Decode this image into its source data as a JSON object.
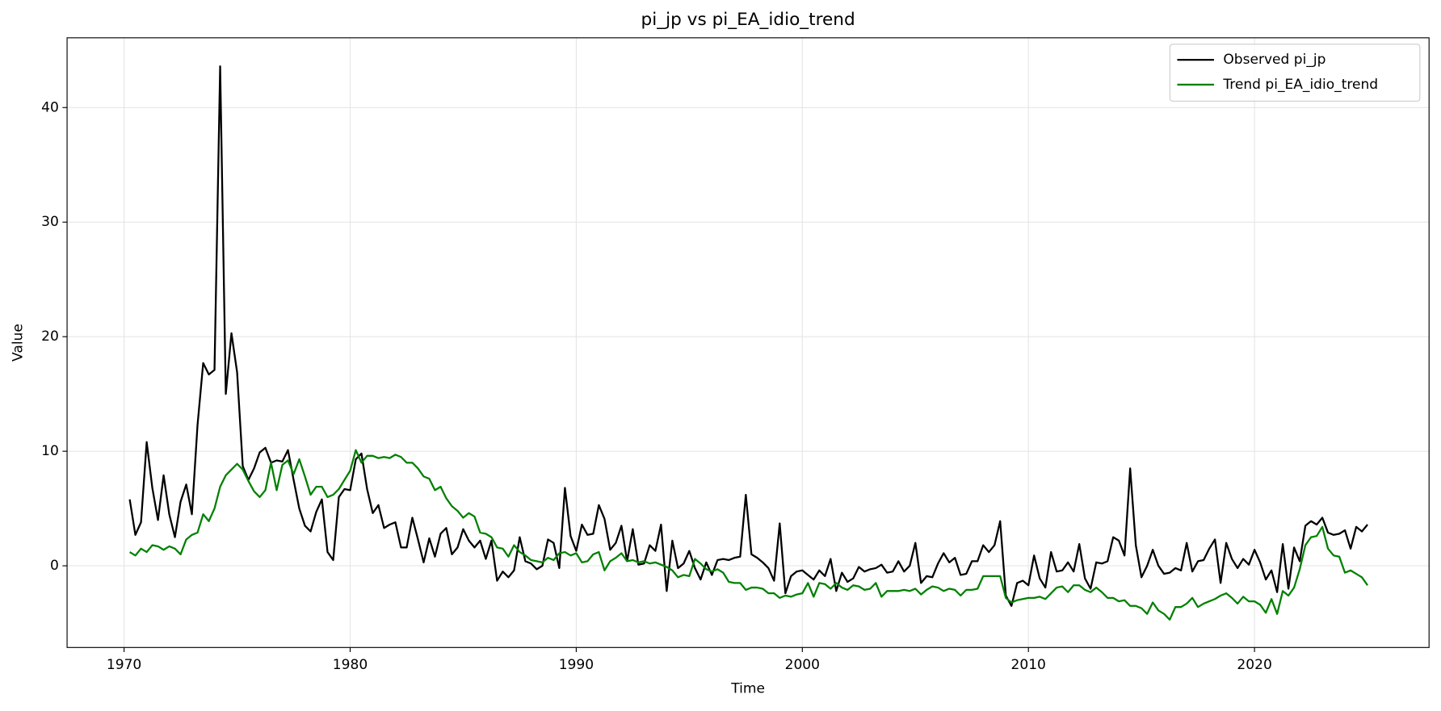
{
  "chart_data": {
    "type": "line",
    "title": "pi_jp vs pi_EA_idio_trend",
    "xlabel": "Time",
    "ylabel": "Value",
    "x": [
      1970.25,
      1970.5,
      1970.75,
      1971,
      1971.25,
      1971.5,
      1971.75,
      1972,
      1972.25,
      1972.5,
      1972.75,
      1973,
      1973.25,
      1973.5,
      1973.75,
      1974,
      1974.25,
      1974.5,
      1974.75,
      1975,
      1975.25,
      1975.5,
      1975.75,
      1976,
      1976.25,
      1976.5,
      1976.75,
      1977,
      1977.25,
      1977.5,
      1977.75,
      1978,
      1978.25,
      1978.5,
      1978.75,
      1979,
      1979.25,
      1979.5,
      1979.75,
      1980,
      1980.25,
      1980.5,
      1980.75,
      1981,
      1981.25,
      1981.5,
      1981.75,
      1982,
      1982.25,
      1982.5,
      1982.75,
      1983,
      1983.25,
      1983.5,
      1983.75,
      1984,
      1984.25,
      1984.5,
      1984.75,
      1985,
      1985.25,
      1985.5,
      1985.75,
      1986,
      1986.25,
      1986.5,
      1986.75,
      1987,
      1987.25,
      1987.5,
      1987.75,
      1988,
      1988.25,
      1988.5,
      1988.75,
      1989,
      1989.25,
      1989.5,
      1989.75,
      1990,
      1990.25,
      1990.5,
      1990.75,
      1991,
      1991.25,
      1991.5,
      1991.75,
      1992,
      1992.25,
      1992.5,
      1992.75,
      1993,
      1993.25,
      1993.5,
      1993.75,
      1994,
      1994.25,
      1994.5,
      1994.75,
      1995,
      1995.25,
      1995.5,
      1995.75,
      1996,
      1996.25,
      1996.5,
      1996.75,
      1997,
      1997.25,
      1997.5,
      1997.75,
      1998,
      1998.25,
      1998.5,
      1998.75,
      1999,
      1999.25,
      1999.5,
      1999.75,
      2000,
      2000.25,
      2000.5,
      2000.75,
      2001,
      2001.25,
      2001.5,
      2001.75,
      2002,
      2002.25,
      2002.5,
      2002.75,
      2003,
      2003.25,
      2003.5,
      2003.75,
      2004,
      2004.25,
      2004.5,
      2004.75,
      2005,
      2005.25,
      2005.5,
      2005.75,
      2006,
      2006.25,
      2006.5,
      2006.75,
      2007,
      2007.25,
      2007.5,
      2007.75,
      2008,
      2008.25,
      2008.5,
      2008.75,
      2009,
      2009.25,
      2009.5,
      2009.75,
      2010,
      2010.25,
      2010.5,
      2010.75,
      2011,
      2011.25,
      2011.5,
      2011.75,
      2012,
      2012.25,
      2012.5,
      2012.75,
      2013,
      2013.25,
      2013.5,
      2013.75,
      2014,
      2014.25,
      2014.5,
      2014.75,
      2015,
      2015.25,
      2015.5,
      2015.75,
      2016,
      2016.25,
      2016.5,
      2016.75,
      2017,
      2017.25,
      2017.5,
      2017.75,
      2018,
      2018.25,
      2018.5,
      2018.75,
      2019,
      2019.25,
      2019.5,
      2019.75,
      2020,
      2020.25,
      2020.5,
      2020.75,
      2021,
      2021.25,
      2021.5,
      2021.75,
      2022,
      2022.25,
      2022.5,
      2022.75,
      2023,
      2023.25,
      2023.5,
      2023.75,
      2024,
      2024.25,
      2024.5,
      2024.75,
      2025
    ],
    "series": [
      {
        "name": "Observed pi_jp",
        "color": "#000000",
        "values": [
          5.8,
          2.7,
          3.8,
          10.8,
          6.8,
          4.0,
          7.9,
          4.5,
          2.5,
          5.6,
          7.1,
          4.5,
          12.3,
          17.7,
          16.7,
          17.1,
          43.6,
          15.0,
          20.3,
          16.9,
          8.7,
          7.5,
          8.5,
          9.9,
          10.3,
          9.0,
          9.2,
          9.1,
          10.1,
          7.5,
          5.0,
          3.5,
          3.0,
          4.7,
          5.8,
          1.2,
          0.5,
          6.0,
          6.7,
          6.6,
          9.3,
          9.8,
          6.7,
          4.6,
          5.3,
          3.3,
          3.6,
          3.8,
          1.6,
          1.6,
          4.2,
          2.3,
          0.3,
          2.4,
          0.8,
          2.8,
          3.3,
          1.0,
          1.6,
          3.2,
          2.2,
          1.6,
          2.2,
          0.6,
          2.2,
          -1.3,
          -0.5,
          -1.0,
          -0.4,
          2.5,
          0.4,
          0.2,
          -0.3,
          0.0,
          2.3,
          2.0,
          -0.2,
          6.8,
          2.6,
          1.3,
          3.6,
          2.7,
          2.8,
          5.3,
          4.1,
          1.4,
          2.0,
          3.5,
          0.4,
          3.2,
          0.1,
          0.2,
          1.8,
          1.3,
          3.6,
          -2.2,
          2.2,
          -0.2,
          0.2,
          1.3,
          -0.2,
          -1.2,
          0.3,
          -0.8,
          0.5,
          0.6,
          0.5,
          0.7,
          0.8,
          6.2,
          1.0,
          0.7,
          0.3,
          -0.2,
          -1.3,
          3.7,
          -2.4,
          -0.9,
          -0.5,
          -0.4,
          -0.8,
          -1.2,
          -0.4,
          -0.9,
          0.6,
          -2.2,
          -0.6,
          -1.4,
          -1.1,
          -0.1,
          -0.5,
          -0.3,
          -0.2,
          0.1,
          -0.6,
          -0.5,
          0.4,
          -0.5,
          0.0,
          2.0,
          -1.5,
          -0.9,
          -1.0,
          0.2,
          1.1,
          0.3,
          0.7,
          -0.8,
          -0.7,
          0.4,
          0.4,
          1.8,
          1.2,
          1.8,
          3.9,
          -2.6,
          -3.5,
          -1.5,
          -1.3,
          -1.7,
          0.9,
          -1.1,
          -1.9,
          1.2,
          -0.5,
          -0.4,
          0.3,
          -0.5,
          1.9,
          -1.1,
          -2.0,
          0.3,
          0.2,
          0.4,
          2.5,
          2.2,
          0.9,
          8.5,
          1.8,
          -1.0,
          0.0,
          1.4,
          0.0,
          -0.7,
          -0.6,
          -0.2,
          -0.4,
          2.0,
          -0.5,
          0.4,
          0.5,
          1.5,
          2.3,
          -1.5,
          2.0,
          0.6,
          -0.2,
          0.6,
          0.1,
          1.4,
          0.3,
          -1.2,
          -0.4,
          -2.3,
          1.9,
          -2.0,
          1.6,
          0.4,
          3.5,
          3.9,
          3.6,
          4.2,
          2.9,
          2.7,
          2.8,
          3.1,
          1.5,
          3.4,
          3.0,
          3.6
        ]
      },
      {
        "name": "Trend pi_EA_idio_trend",
        "color": "#008000",
        "values": [
          1.2,
          0.9,
          1.5,
          1.2,
          1.8,
          1.7,
          1.4,
          1.7,
          1.5,
          1.0,
          2.3,
          2.7,
          2.9,
          4.5,
          3.9,
          5.0,
          6.9,
          7.9,
          8.4,
          8.9,
          8.4,
          7.4,
          6.5,
          6.0,
          6.6,
          9.0,
          6.6,
          8.8,
          9.2,
          8.0,
          9.3,
          7.8,
          6.2,
          6.9,
          6.9,
          6.0,
          6.2,
          6.7,
          7.5,
          8.3,
          10.1,
          9.0,
          9.6,
          9.6,
          9.4,
          9.5,
          9.4,
          9.7,
          9.5,
          9.0,
          9.0,
          8.5,
          7.8,
          7.6,
          6.6,
          6.9,
          5.9,
          5.2,
          4.8,
          4.2,
          4.6,
          4.3,
          2.9,
          2.8,
          2.5,
          1.6,
          1.5,
          0.8,
          1.8,
          1.2,
          0.9,
          0.5,
          0.4,
          0.3,
          0.7,
          0.5,
          1.1,
          1.2,
          0.9,
          1.1,
          0.3,
          0.4,
          1.0,
          1.2,
          -0.4,
          0.4,
          0.7,
          1.1,
          0.4,
          0.5,
          0.3,
          0.4,
          0.2,
          0.3,
          0.1,
          -0.1,
          -0.4,
          -1.0,
          -0.8,
          -0.9,
          0.6,
          0.2,
          -0.3,
          -0.5,
          -0.3,
          -0.6,
          -1.4,
          -1.5,
          -1.5,
          -2.1,
          -1.9,
          -1.9,
          -2.0,
          -2.4,
          -2.4,
          -2.8,
          -2.6,
          -2.7,
          -2.5,
          -2.4,
          -1.5,
          -2.7,
          -1.5,
          -1.6,
          -2.0,
          -1.5,
          -1.9,
          -2.1,
          -1.7,
          -1.8,
          -2.1,
          -2.0,
          -1.5,
          -2.7,
          -2.2,
          -2.2,
          -2.2,
          -2.1,
          -2.2,
          -2.0,
          -2.5,
          -2.1,
          -1.8,
          -1.9,
          -2.2,
          -2.0,
          -2.1,
          -2.6,
          -2.1,
          -2.1,
          -2.0,
          -0.9,
          -0.9,
          -0.9,
          -0.9,
          -2.8,
          -3.2,
          -3.0,
          -2.9,
          -2.8,
          -2.8,
          -2.7,
          -2.9,
          -2.4,
          -1.9,
          -1.8,
          -2.3,
          -1.7,
          -1.7,
          -2.1,
          -2.3,
          -1.9,
          -2.3,
          -2.8,
          -2.8,
          -3.1,
          -3.0,
          -3.5,
          -3.5,
          -3.7,
          -4.2,
          -3.2,
          -3.9,
          -4.2,
          -4.7,
          -3.6,
          -3.6,
          -3.3,
          -2.8,
          -3.6,
          -3.3,
          -3.1,
          -2.9,
          -2.6,
          -2.4,
          -2.8,
          -3.3,
          -2.7,
          -3.1,
          -3.1,
          -3.4,
          -4.1,
          -2.9,
          -4.2,
          -2.2,
          -2.6,
          -1.9,
          -0.3,
          1.8,
          2.5,
          2.6,
          3.4,
          1.5,
          0.9,
          0.8,
          -0.6,
          -0.4,
          -0.7,
          -1.0,
          -1.7
        ]
      }
    ],
    "xlim": [
      1967.48,
      2027.72
    ],
    "ylim": [
      -7.13,
      46.09
    ],
    "xticks": [
      1970,
      1980,
      1990,
      2000,
      2010,
      2020
    ],
    "yticks": [
      0,
      10,
      20,
      30,
      40
    ],
    "grid": true,
    "legend": "upper right"
  }
}
